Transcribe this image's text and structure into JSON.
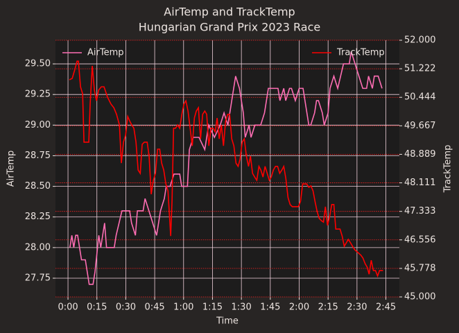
{
  "chart_data": {
    "type": "line",
    "title": "AirTemp and TrackTemp",
    "subtitle": "Hungarian Grand Prix 2023 Race",
    "xlabel": "Time",
    "ylabel": "AirTemp",
    "y2label": "TrackTemp",
    "xlim": [
      -6.5,
      172
    ],
    "xticks": [
      {
        "value": 0,
        "label": "0:00"
      },
      {
        "value": 15,
        "label": "0:15"
      },
      {
        "value": 30,
        "label": "0:30"
      },
      {
        "value": 45,
        "label": "0:45"
      },
      {
        "value": 60,
        "label": "1:00"
      },
      {
        "value": 75,
        "label": "1:15"
      },
      {
        "value": 90,
        "label": "1:30"
      },
      {
        "value": 105,
        "label": "1:45"
      },
      {
        "value": 120,
        "label": "2:00"
      },
      {
        "value": 135,
        "label": "2:15"
      },
      {
        "value": 150,
        "label": "2:30"
      },
      {
        "value": 165,
        "label": "2:45"
      }
    ],
    "ylim": [
      27.597,
      29.693
    ],
    "yticks": [
      27.75,
      {
        "value": 28,
        "label": "28.00"
      },
      28.25,
      {
        "value": 28.5,
        "label": "28.50"
      },
      28.75,
      {
        "value": 29,
        "label": "29.00"
      },
      29.25,
      {
        "value": 29.5,
        "label": "29.50"
      }
    ],
    "y2lim": [
      45,
      52
    ],
    "y2ticks": [
      {
        "value": 45,
        "label": "45.000"
      },
      {
        "value": 45.778,
        "label": "45.778"
      },
      {
        "value": 46.556,
        "label": "46.556"
      },
      {
        "value": 47.333,
        "label": "47.333"
      },
      {
        "value": 48.111,
        "label": "48.111"
      },
      {
        "value": 48.889,
        "label": "48.889"
      },
      {
        "value": 49.667,
        "label": "49.667"
      },
      {
        "value": 50.444,
        "label": "50.444"
      },
      {
        "value": 51.222,
        "label": "51.222"
      },
      {
        "value": 52,
        "label": "52.000"
      }
    ],
    "grid": true,
    "series": [
      {
        "name": "AirTemp",
        "color": "#ff6eb4",
        "axis": "y",
        "x": [
          1,
          2,
          3,
          4,
          5,
          7,
          9,
          10,
          11,
          13,
          14,
          16,
          17,
          19,
          20,
          24,
          25,
          28,
          32,
          33,
          35,
          36,
          39,
          40,
          42,
          44,
          46,
          48,
          50,
          51,
          53,
          55,
          58,
          59,
          62,
          63,
          65,
          68,
          71,
          73,
          76,
          79,
          81,
          83,
          85,
          87,
          89,
          91,
          92,
          94,
          95,
          97,
          100,
          102,
          104,
          109,
          110,
          112,
          113,
          115,
          116,
          118,
          120,
          122,
          124,
          125,
          126,
          128,
          129,
          130,
          132,
          133,
          135,
          136,
          138,
          140,
          143,
          146,
          147,
          149,
          151,
          153,
          155,
          156,
          158,
          159,
          161,
          163
        ],
        "values": [
          28.0,
          28.1,
          28.0,
          28.1,
          28.1,
          27.9,
          27.9,
          27.8,
          27.7,
          27.7,
          27.8,
          28.1,
          28.0,
          28.2,
          28.0,
          28.0,
          28.1,
          28.3,
          28.3,
          28.2,
          28.1,
          28.3,
          28.3,
          28.4,
          28.3,
          28.2,
          28.1,
          28.3,
          28.4,
          28.5,
          28.5,
          28.6,
          28.6,
          28.5,
          28.5,
          28.8,
          28.9,
          28.9,
          28.8,
          29.0,
          28.9,
          29.0,
          29.1,
          29.0,
          29.2,
          29.4,
          29.3,
          29.1,
          28.9,
          29.0,
          28.9,
          29.0,
          29.0,
          29.1,
          29.3,
          29.3,
          29.2,
          29.3,
          29.2,
          29.3,
          29.3,
          29.2,
          29.3,
          29.3,
          29.1,
          29.0,
          29.0,
          29.1,
          29.2,
          29.2,
          29.1,
          29.0,
          29.1,
          29.3,
          29.4,
          29.3,
          29.5,
          29.5,
          29.6,
          29.5,
          29.4,
          29.3,
          29.3,
          29.4,
          29.3,
          29.4,
          29.4,
          29.3
        ]
      },
      {
        "name": "TrackTemp",
        "color": "#ff0000",
        "axis": "y2",
        "x": [
          0.7,
          2.2,
          3.6,
          4.7,
          5.4,
          6.5,
          7.6,
          8.3,
          10.8,
          11.5,
          12.6,
          13.7,
          14.8,
          15.9,
          17.3,
          18.7,
          20.5,
          22.3,
          23.8,
          25.2,
          26.7,
          27.7,
          28.8,
          29.9,
          31.0,
          32.1,
          33.1,
          34.2,
          35.3,
          36.4,
          37.5,
          38.5,
          39.6,
          41.1,
          42.1,
          43.2,
          44.3,
          45.4,
          46.5,
          47.6,
          48.6,
          49.7,
          50.8,
          51.9,
          53.3,
          54.0,
          54.8,
          55.8,
          56.9,
          58.0,
          59.1,
          60.2,
          61.2,
          62.3,
          63.4,
          64.5,
          65.6,
          66.6,
          67.7,
          68.8,
          69.9,
          71.0,
          72.0,
          73.1,
          74.2,
          75.3,
          76.4,
          77.4,
          78.5,
          79.6,
          80.7,
          81.8,
          82.9,
          83.9,
          85.0,
          86.1,
          87.2,
          88.3,
          89.3,
          90.4,
          91.5,
          92.6,
          93.7,
          94.7,
          95.8,
          96.9,
          98.0,
          99.1,
          100.1,
          101.2,
          102.3,
          103.4,
          104.5,
          105.5,
          106.6,
          107.7,
          108.8,
          109.9,
          111.0,
          112.0,
          113.1,
          114.2,
          115.3,
          116.4,
          118.5,
          119.6,
          120.7,
          121.8,
          123.9,
          125.0,
          126.1,
          127.2,
          128.2,
          129.3,
          130.4,
          131.5,
          132.6,
          133.6,
          134.7,
          135.8,
          136.9,
          138.0,
          139.0,
          141.2,
          142.3,
          143.4,
          144.5,
          145.5,
          146.6,
          147.7,
          148.8,
          152.0,
          153.1,
          154.2,
          155.3,
          156.3,
          157.4,
          158.5,
          159.6,
          160.7,
          161.7,
          163.5
        ],
        "values": [
          50.92,
          50.96,
          51.21,
          51.43,
          51.43,
          50.73,
          50.54,
          49.22,
          49.22,
          50.26,
          51.3,
          50.64,
          50.35,
          50.64,
          50.73,
          50.73,
          50.45,
          50.26,
          50.16,
          49.98,
          49.69,
          48.65,
          49.22,
          49.41,
          49.92,
          49.79,
          49.69,
          49.6,
          49.22,
          48.46,
          48.37,
          49.16,
          49.22,
          49.22,
          48.84,
          47.8,
          48.18,
          48.37,
          49.03,
          49.03,
          48.65,
          48.46,
          48.08,
          47.89,
          46.66,
          47.61,
          49.6,
          49.6,
          49.69,
          49.6,
          49.98,
          50.26,
          50.35,
          50.07,
          49.6,
          49.12,
          49.88,
          50.07,
          50.16,
          49.31,
          49.98,
          50.07,
          49.98,
          49.12,
          49.6,
          49.6,
          49.5,
          49.88,
          49.31,
          49.69,
          49.12,
          49.79,
          49.98,
          49.98,
          49.31,
          49.12,
          48.65,
          48.56,
          48.75,
          49.22,
          49.31,
          48.84,
          48.56,
          48.84,
          48.37,
          48.27,
          48.18,
          48.56,
          48.46,
          48.27,
          48.56,
          48.37,
          48.18,
          48.27,
          48.46,
          48.56,
          48.56,
          48.37,
          48.46,
          48.56,
          48.22,
          47.71,
          47.52,
          47.46,
          47.46,
          47.46,
          47.61,
          48.08,
          48.08,
          47.99,
          48.03,
          47.89,
          47.61,
          47.33,
          47.14,
          47.08,
          47.04,
          47.46,
          46.95,
          47.19,
          47.52,
          47.52,
          46.85,
          46.85,
          46.66,
          46.38,
          46.48,
          46.57,
          46.48,
          46.38,
          46.29,
          46.14,
          46.06,
          45.91,
          45.81,
          45.62,
          46.0,
          45.72,
          45.72,
          45.57,
          45.72,
          45.72
        ]
      }
    ]
  }
}
